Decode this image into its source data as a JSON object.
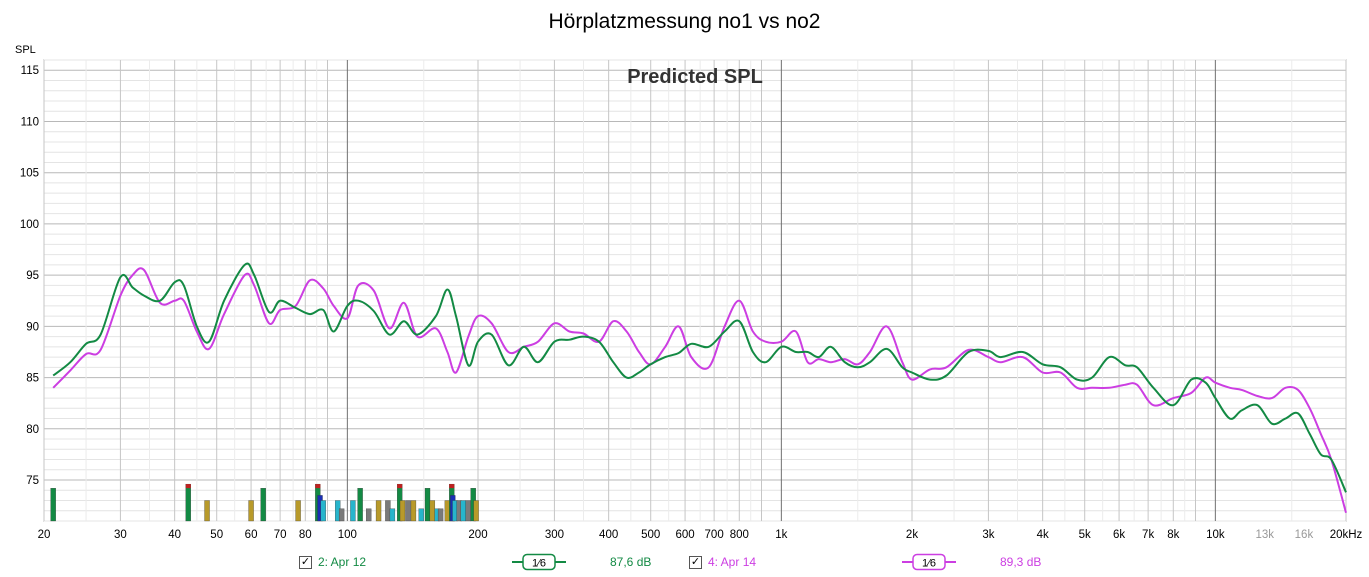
{
  "title": "Hörplatzmessung no1 vs no2",
  "chart_data": {
    "type": "line",
    "annotation": "Predicted SPL",
    "ylabel": "SPL",
    "xscale": "log",
    "xlim": [
      20,
      20000
    ],
    "ylim": [
      71,
      116
    ],
    "grid": true,
    "yticks": [
      75,
      80,
      85,
      90,
      95,
      100,
      105,
      110,
      115
    ],
    "xticks": [
      {
        "v": 20,
        "l": "20"
      },
      {
        "v": 30,
        "l": "30"
      },
      {
        "v": 40,
        "l": "40"
      },
      {
        "v": 50,
        "l": "50"
      },
      {
        "v": 60,
        "l": "60"
      },
      {
        "v": 70,
        "l": "70"
      },
      {
        "v": 80,
        "l": "80"
      },
      {
        "v": 100,
        "l": "100"
      },
      {
        "v": 200,
        "l": "200"
      },
      {
        "v": 300,
        "l": "300"
      },
      {
        "v": 400,
        "l": "400"
      },
      {
        "v": 500,
        "l": "500"
      },
      {
        "v": 600,
        "l": "600"
      },
      {
        "v": 700,
        "l": "700"
      },
      {
        "v": 800,
        "l": "800"
      },
      {
        "v": 1000,
        "l": "1k"
      },
      {
        "v": 2000,
        "l": "2k"
      },
      {
        "v": 3000,
        "l": "3k"
      },
      {
        "v": 4000,
        "l": "4k"
      },
      {
        "v": 5000,
        "l": "5k"
      },
      {
        "v": 6000,
        "l": "6k"
      },
      {
        "v": 7000,
        "l": "7k"
      },
      {
        "v": 8000,
        "l": "8k"
      },
      {
        "v": 10000,
        "l": "10k"
      },
      {
        "v": 13000,
        "l": "13k",
        "muted": true
      },
      {
        "v": 16000,
        "l": "16k",
        "muted": true
      },
      {
        "v": 20000,
        "l": "20kHz"
      }
    ],
    "series": [
      {
        "name": "2: Apr 12",
        "color": "#138a44",
        "x": [
          21,
          23,
          25,
          27,
          30,
          32,
          34,
          37,
          40,
          42,
          45,
          48,
          52,
          58,
          61,
          66,
          70,
          76,
          82,
          88,
          93,
          100,
          106,
          115,
          125,
          135,
          145,
          160,
          170,
          178,
          190,
          200,
          215,
          235,
          255,
          275,
          300,
          325,
          350,
          380,
          410,
          440,
          470,
          500,
          540,
          580,
          620,
          680,
          740,
          800,
          860,
          920,
          1000,
          1080,
          1150,
          1220,
          1300,
          1400,
          1500,
          1600,
          1750,
          1900,
          2000,
          2200,
          2400,
          2700,
          3000,
          3200,
          3600,
          4000,
          4400,
          4800,
          5200,
          5700,
          6200,
          6600,
          7200,
          8000,
          8800,
          9500,
          10000,
          10800,
          11500,
          12500,
          13500,
          14500,
          15500,
          16500,
          17500,
          18500,
          20000
        ],
        "y": [
          85.2,
          86.5,
          88.3,
          89.2,
          94.8,
          93.8,
          93.0,
          92.5,
          94.3,
          94.0,
          90.0,
          88.5,
          92.5,
          96.0,
          95.0,
          91.4,
          92.5,
          91.8,
          91.2,
          91.6,
          89.5,
          92.0,
          92.5,
          91.5,
          89.2,
          90.5,
          89.2,
          91.0,
          93.6,
          91.0,
          86.2,
          88.5,
          89.2,
          86.2,
          88.0,
          86.5,
          88.5,
          88.7,
          89.0,
          88.5,
          86.5,
          85.0,
          85.5,
          86.3,
          87.0,
          87.4,
          88.3,
          88.0,
          89.5,
          90.5,
          87.5,
          86.5,
          88.0,
          87.5,
          87.5,
          87.0,
          88.0,
          86.5,
          86.0,
          86.5,
          87.8,
          86.0,
          85.5,
          84.8,
          85.2,
          87.5,
          87.6,
          87.0,
          87.5,
          86.3,
          86.0,
          84.8,
          85.0,
          87.0,
          86.2,
          86.0,
          84.0,
          82.3,
          84.8,
          84.5,
          83.0,
          81.0,
          81.8,
          82.3,
          80.5,
          81.0,
          81.5,
          79.5,
          77.5,
          77.0,
          73.8
        ]
      },
      {
        "name": "4: Apr 14",
        "color": "#cc3ee2",
        "x": [
          21,
          23,
          25,
          27,
          30,
          32,
          34,
          37,
          40,
          42,
          45,
          48,
          52,
          58,
          61,
          66,
          70,
          76,
          82,
          88,
          93,
          100,
          106,
          115,
          125,
          135,
          145,
          160,
          170,
          178,
          190,
          200,
          215,
          235,
          255,
          275,
          300,
          325,
          350,
          380,
          410,
          440,
          470,
          500,
          540,
          580,
          620,
          680,
          740,
          800,
          860,
          920,
          1000,
          1080,
          1150,
          1220,
          1300,
          1400,
          1500,
          1600,
          1750,
          1900,
          2000,
          2200,
          2400,
          2700,
          3000,
          3200,
          3600,
          4000,
          4400,
          4800,
          5200,
          5700,
          6200,
          6600,
          7200,
          8000,
          8800,
          9500,
          10000,
          10800,
          11500,
          12500,
          13500,
          14500,
          15500,
          16500,
          17500,
          18500,
          20000
        ],
        "y": [
          84.0,
          85.7,
          87.3,
          87.7,
          93.0,
          95.0,
          95.5,
          92.3,
          92.5,
          92.5,
          89.5,
          87.8,
          91.2,
          95.0,
          94.0,
          90.3,
          91.6,
          92.0,
          94.5,
          93.7,
          92.0,
          90.8,
          94.0,
          93.5,
          89.8,
          92.3,
          89.0,
          89.8,
          87.5,
          85.5,
          89.0,
          91.0,
          90.3,
          87.5,
          88.0,
          88.5,
          90.3,
          89.5,
          89.3,
          88.5,
          90.5,
          89.5,
          87.5,
          86.3,
          88.0,
          90.0,
          87.0,
          86.0,
          90.0,
          92.5,
          89.5,
          88.5,
          88.5,
          89.5,
          86.5,
          86.8,
          86.5,
          86.8,
          86.3,
          87.5,
          90.0,
          86.5,
          84.8,
          85.8,
          86.0,
          87.7,
          87.0,
          86.5,
          87.0,
          85.5,
          85.5,
          84.0,
          84.0,
          84.0,
          84.3,
          84.3,
          82.3,
          83.0,
          83.5,
          85.0,
          84.5,
          84.0,
          83.8,
          83.2,
          83.0,
          84.0,
          83.8,
          82.0,
          79.5,
          77.0,
          71.8
        ]
      }
    ],
    "bars_note": "decorative marker bars at bottom",
    "bars": [
      {
        "x": 21,
        "h": 74.2,
        "c": "#138a44"
      },
      {
        "x": 43,
        "h": 74.6,
        "c": "#138a44"
      },
      {
        "x": 47.5,
        "h": 73.0,
        "c": "#b89a2a"
      },
      {
        "x": 60,
        "h": 73.0,
        "c": "#b89a2a"
      },
      {
        "x": 64,
        "h": 74.2,
        "c": "#138a44"
      },
      {
        "x": 77,
        "h": 73.0,
        "c": "#b89a2a"
      },
      {
        "x": 85.5,
        "h": 74.6,
        "c": "#138a44"
      },
      {
        "x": 86.5,
        "h": 73.5,
        "c": "#1a2fb5"
      },
      {
        "x": 88,
        "h": 73.0,
        "c": "#27b5cc"
      },
      {
        "x": 95,
        "h": 73.0,
        "c": "#27b5cc"
      },
      {
        "x": 97,
        "h": 72.2,
        "c": "#7a7a7a"
      },
      {
        "x": 103,
        "h": 73.0,
        "c": "#27b5cc"
      },
      {
        "x": 107,
        "h": 74.2,
        "c": "#138a44"
      },
      {
        "x": 112,
        "h": 72.2,
        "c": "#7a7a7a"
      },
      {
        "x": 118,
        "h": 73.0,
        "c": "#b89a2a"
      },
      {
        "x": 124,
        "h": 73.0,
        "c": "#7a7a7a"
      },
      {
        "x": 127,
        "h": 72.2,
        "c": "#27b5cc"
      },
      {
        "x": 132,
        "h": 74.6,
        "c": "#138a44"
      },
      {
        "x": 134,
        "h": 73.0,
        "c": "#b89a2a"
      },
      {
        "x": 138,
        "h": 73.0,
        "c": "#7a7a7a"
      },
      {
        "x": 142,
        "h": 73.0,
        "c": "#b89a2a"
      },
      {
        "x": 148,
        "h": 72.2,
        "c": "#27b5cc"
      },
      {
        "x": 153,
        "h": 74.2,
        "c": "#138a44"
      },
      {
        "x": 157,
        "h": 73.0,
        "c": "#b89a2a"
      },
      {
        "x": 161,
        "h": 72.2,
        "c": "#27b5cc"
      },
      {
        "x": 164,
        "h": 72.2,
        "c": "#7a7a7a"
      },
      {
        "x": 170,
        "h": 73.0,
        "c": "#b89a2a"
      },
      {
        "x": 174,
        "h": 74.6,
        "c": "#138a44"
      },
      {
        "x": 175,
        "h": 73.5,
        "c": "#1a2fb5"
      },
      {
        "x": 177,
        "h": 73.0,
        "c": "#27b5cc"
      },
      {
        "x": 181,
        "h": 73.0,
        "c": "#7a7a7a"
      },
      {
        "x": 185,
        "h": 73.0,
        "c": "#27b5cc"
      },
      {
        "x": 190,
        "h": 73.0,
        "c": "#7a7a7a"
      },
      {
        "x": 195,
        "h": 74.2,
        "c": "#138a44"
      },
      {
        "x": 198,
        "h": 73.0,
        "c": "#b89a2a"
      }
    ]
  },
  "legend": [
    {
      "checked": "✓",
      "label": "2: Apr 12",
      "smoothing": "1⁄6",
      "level": "87,6 dB",
      "color": "#138a44"
    },
    {
      "checked": "✓",
      "label": "4: Apr 14",
      "smoothing": "1⁄6",
      "level": "89,3 dB",
      "color": "#cc3ee2"
    }
  ]
}
